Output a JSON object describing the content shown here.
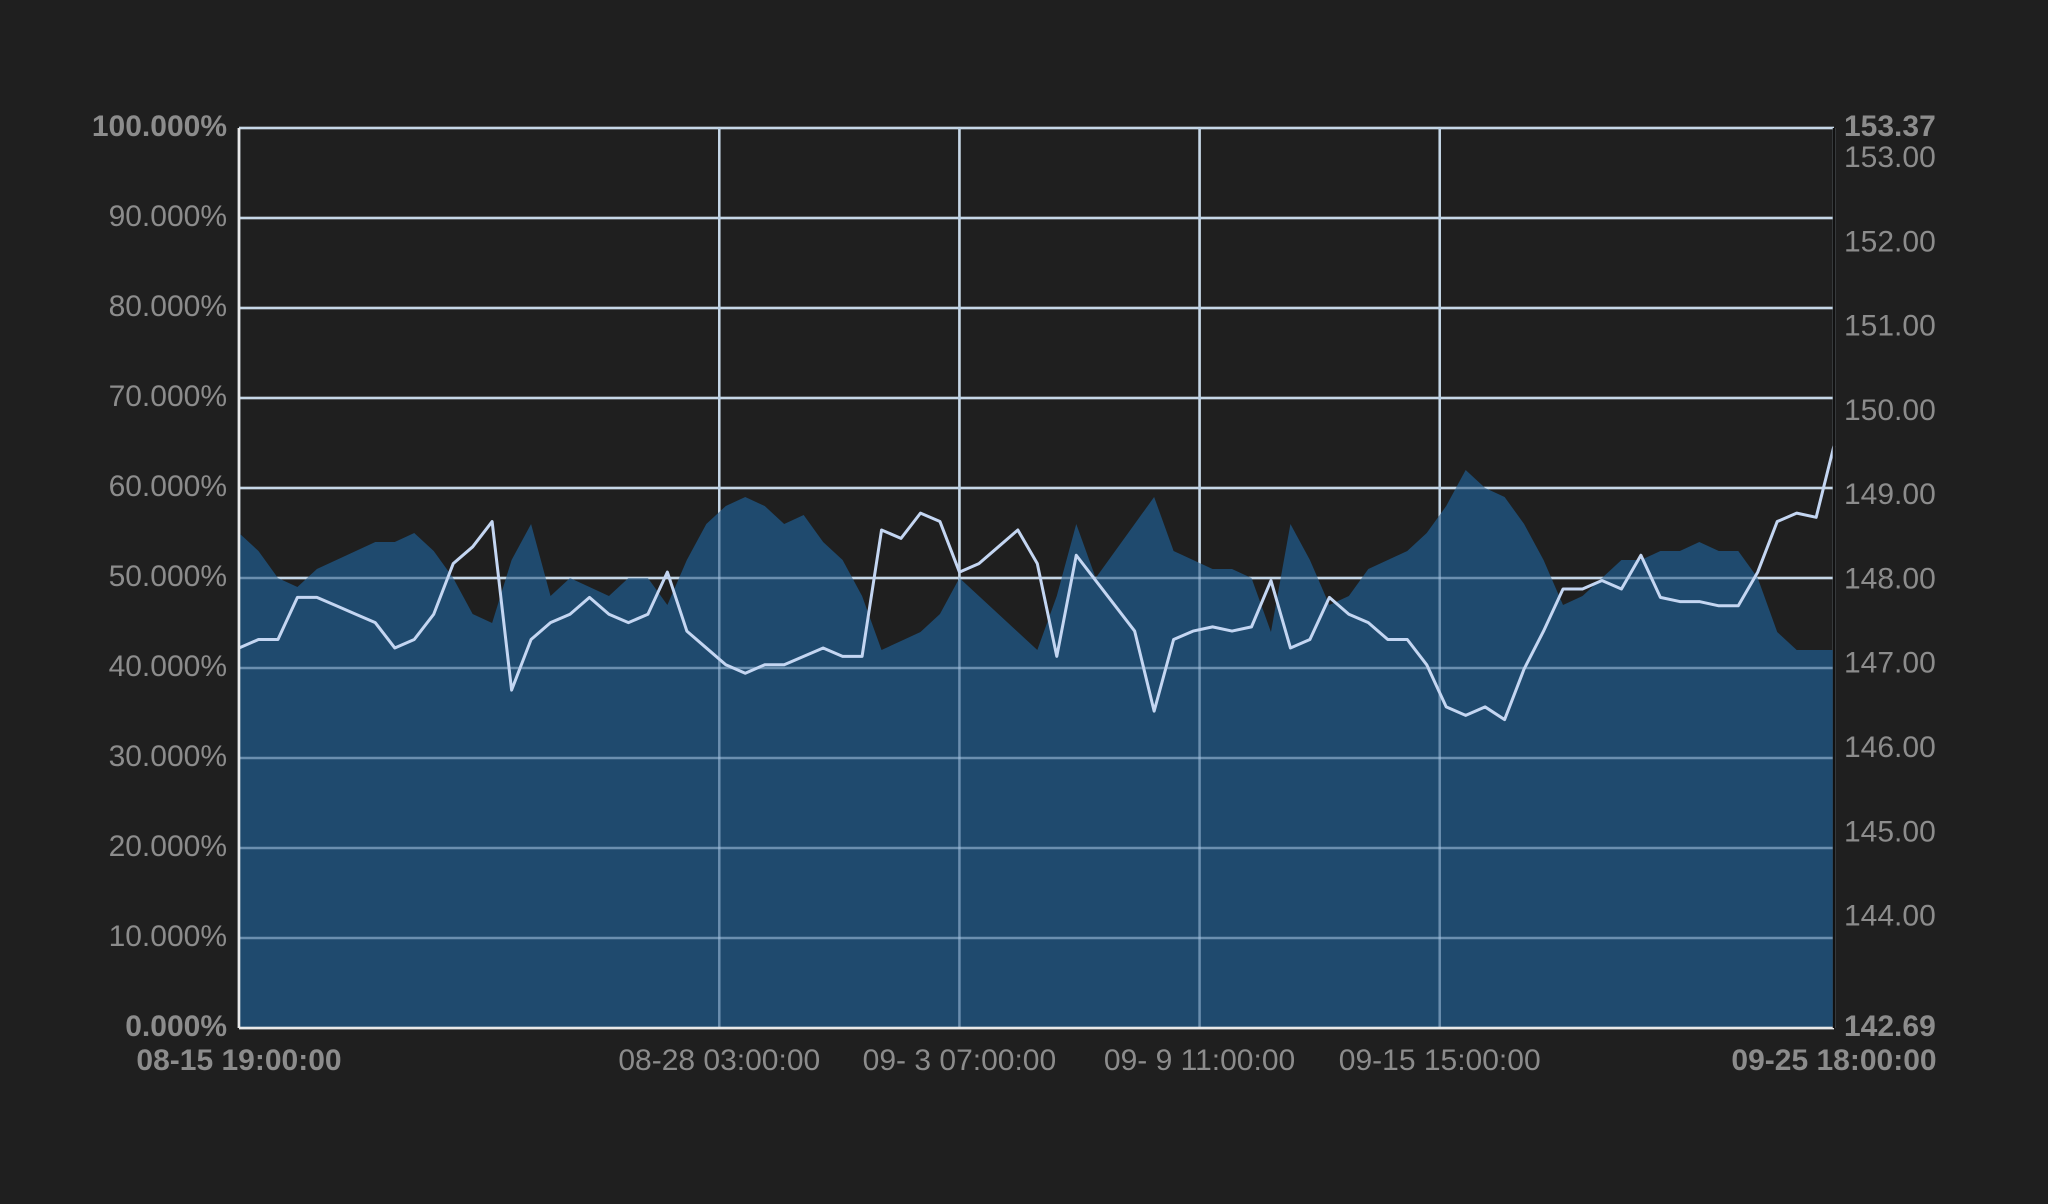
{
  "chart_data": {
    "type": "combo",
    "x": [
      "08-15 19:00:00",
      "08-16 07:00:00",
      "08-16 19:00:00",
      "08-17 07:00:00",
      "08-17 19:00:00",
      "08-18 07:00:00",
      "08-18 19:00:00",
      "08-19 07:00:00",
      "08-19 19:00:00",
      "08-20 07:00:00",
      "08-20 19:00:00",
      "08-21 07:00:00",
      "08-21 19:00:00",
      "08-22 07:00:00",
      "08-22 19:00:00",
      "08-23 07:00:00",
      "08-23 19:00:00",
      "08-24 07:00:00",
      "08-24 19:00:00",
      "08-25 07:00:00",
      "08-25 19:00:00",
      "08-26 07:00:00",
      "08-26 19:00:00",
      "08-27 07:00:00",
      "08-27 19:00:00",
      "08-28 07:00:00",
      "08-28 19:00:00",
      "08-29 07:00:00",
      "08-29 19:00:00",
      "08-30 07:00:00",
      "08-30 19:00:00",
      "08-31 07:00:00",
      "08-31 19:00:00",
      "09-01 07:00:00",
      "09-01 19:00:00",
      "09-02 07:00:00",
      "09-02 19:00:00",
      "09-03 07:00:00",
      "09-03 19:00:00",
      "09-04 07:00:00",
      "09-04 19:00:00",
      "09-05 07:00:00",
      "09-05 19:00:00",
      "09-06 07:00:00",
      "09-06 19:00:00",
      "09-07 07:00:00",
      "09-07 19:00:00",
      "09-08 07:00:00",
      "09-08 19:00:00",
      "09-09 07:00:00",
      "09-09 19:00:00",
      "09-10 07:00:00",
      "09-10 19:00:00",
      "09-11 07:00:00",
      "09-11 19:00:00",
      "09-12 07:00:00",
      "09-12 19:00:00",
      "09-13 07:00:00",
      "09-13 19:00:00",
      "09-14 07:00:00",
      "09-14 19:00:00",
      "09-15 07:00:00",
      "09-15 19:00:00",
      "09-16 07:00:00",
      "09-16 19:00:00",
      "09-17 07:00:00",
      "09-17 19:00:00",
      "09-18 07:00:00",
      "09-18 19:00:00",
      "09-19 07:00:00",
      "09-19 19:00:00",
      "09-20 07:00:00",
      "09-20 19:00:00",
      "09-21 07:00:00",
      "09-21 19:00:00",
      "09-22 07:00:00",
      "09-22 19:00:00",
      "09-23 07:00:00",
      "09-23 19:00:00",
      "09-24 07:00:00",
      "09-24 19:00:00",
      "09-25 07:00:00",
      "09-25 18:00:00"
    ],
    "xlim": [
      "08-15 19:00:00",
      "09-25 18:00:00"
    ],
    "xticks": [
      "08-15 19:00:00",
      "08-28 03:00:00",
      "09- 3 07:00:00",
      "09- 9 11:00:00",
      "09-15 15:00:00",
      "09-25 18:00:00"
    ],
    "ylim": [
      0,
      100
    ],
    "yticks": [
      {
        "value": 0,
        "label": "0.000%"
      },
      {
        "value": 10,
        "label": "10.000%"
      },
      {
        "value": 20,
        "label": "20.000%"
      },
      {
        "value": 30,
        "label": "30.000%"
      },
      {
        "value": 40,
        "label": "40.000%"
      },
      {
        "value": 50,
        "label": "50.000%"
      },
      {
        "value": 60,
        "label": "60.000%"
      },
      {
        "value": 70,
        "label": "70.000%"
      },
      {
        "value": 80,
        "label": "80.000%"
      },
      {
        "value": 90,
        "label": "90.000%"
      },
      {
        "value": 100,
        "label": "100.000%"
      }
    ],
    "y2lim": [
      142.69,
      153.37
    ],
    "y2ticks": [
      {
        "value": 142.69,
        "label": "142.69"
      },
      {
        "value": 144,
        "label": "144.00"
      },
      {
        "value": 145,
        "label": "145.00"
      },
      {
        "value": 146,
        "label": "146.00"
      },
      {
        "value": 147,
        "label": "147.00"
      },
      {
        "value": 148,
        "label": "148.00"
      },
      {
        "value": 149,
        "label": "149.00"
      },
      {
        "value": 150,
        "label": "150.00"
      },
      {
        "value": 151,
        "label": "151.00"
      },
      {
        "value": 152,
        "label": "152.00"
      },
      {
        "value": 153,
        "label": "153.00"
      },
      {
        "value": 153.37,
        "label": "153.37"
      }
    ],
    "grid": true,
    "series": [
      {
        "type": "area",
        "color": "#1f4a6e",
        "values": [
          55,
          53,
          50,
          49,
          51,
          52,
          53,
          54,
          54,
          55,
          53,
          50,
          46,
          45,
          52,
          56,
          48,
          50,
          49,
          48,
          50,
          50,
          47,
          52,
          56,
          58,
          59,
          58,
          56,
          57,
          54,
          52,
          48,
          42,
          43,
          44,
          46,
          50,
          48,
          46,
          44,
          42,
          48,
          56,
          50,
          53,
          56,
          59,
          53,
          52,
          51,
          51,
          50,
          44,
          56,
          52,
          47,
          48,
          51,
          52,
          53,
          55,
          58,
          62,
          60,
          59,
          56,
          52,
          47,
          48,
          50,
          52,
          52,
          53,
          53,
          54,
          53,
          53,
          50,
          44,
          42,
          42,
          42
        ]
      },
      {
        "type": "line",
        "axis": "y2",
        "color": "#c4d6f2",
        "values": [
          147.2,
          147.3,
          147.3,
          147.8,
          147.8,
          147.7,
          147.6,
          147.5,
          147.2,
          147.3,
          147.6,
          148.2,
          148.4,
          148.7,
          146.7,
          147.3,
          147.5,
          147.6,
          147.8,
          147.6,
          147.5,
          147.6,
          148.1,
          147.4,
          147.2,
          147.0,
          146.9,
          147.0,
          147.0,
          147.1,
          147.2,
          147.1,
          147.1,
          148.6,
          148.5,
          148.8,
          148.7,
          148.1,
          148.2,
          148.4,
          148.6,
          148.2,
          147.1,
          148.3,
          148.0,
          147.7,
          147.4,
          146.45,
          147.3,
          147.4,
          147.45,
          147.4,
          147.45,
          148.0,
          147.2,
          147.3,
          147.8,
          147.6,
          147.5,
          147.3,
          147.3,
          147.0,
          146.5,
          146.4,
          146.5,
          146.35,
          146.95,
          147.4,
          147.9,
          147.9,
          148.0,
          147.9,
          148.3,
          147.8,
          147.75,
          147.75,
          147.7,
          147.7,
          148.1,
          148.7,
          148.8,
          148.75,
          149.6
        ]
      }
    ]
  }
}
